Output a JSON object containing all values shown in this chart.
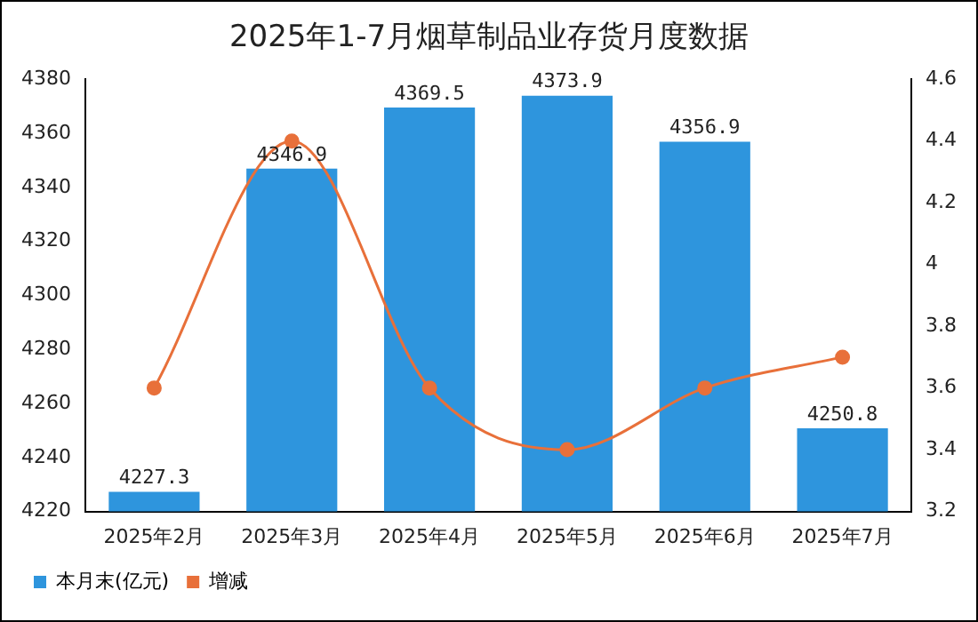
{
  "chart_data": {
    "type": "bar",
    "title": "2025年1-7月烟草制品业存货月度数据",
    "categories": [
      "2025年2月",
      "2025年3月",
      "2025年4月",
      "2025年5月",
      "2025年6月",
      "2025年7月"
    ],
    "series": [
      {
        "name": "本月末(亿元)",
        "color": "#2e95dd",
        "values": [
          4227.3,
          4346.9,
          4369.5,
          4373.9,
          4356.9,
          4250.8
        ],
        "value_labels": [
          "4227.3",
          "4346.9",
          "4369.5",
          "4373.9",
          "4356.9",
          "4250.8"
        ]
      },
      {
        "name": "增减",
        "type": "line",
        "axis": "y2",
        "color": "#e8703a",
        "values": [
          3.6,
          4.4,
          3.6,
          3.4,
          3.6,
          3.7
        ]
      }
    ],
    "ylim": [
      4220,
      4380
    ],
    "yticks": [
      4220,
      4240,
      4260,
      4280,
      4300,
      4320,
      4340,
      4360,
      4380
    ],
    "y2lim": [
      3.2,
      4.6
    ],
    "y2ticks": [
      3.2,
      3.4,
      3.6,
      3.8,
      4,
      4.2,
      4.4,
      4.6
    ],
    "grid": false,
    "legend": "bottom left",
    "marker": "circle"
  }
}
